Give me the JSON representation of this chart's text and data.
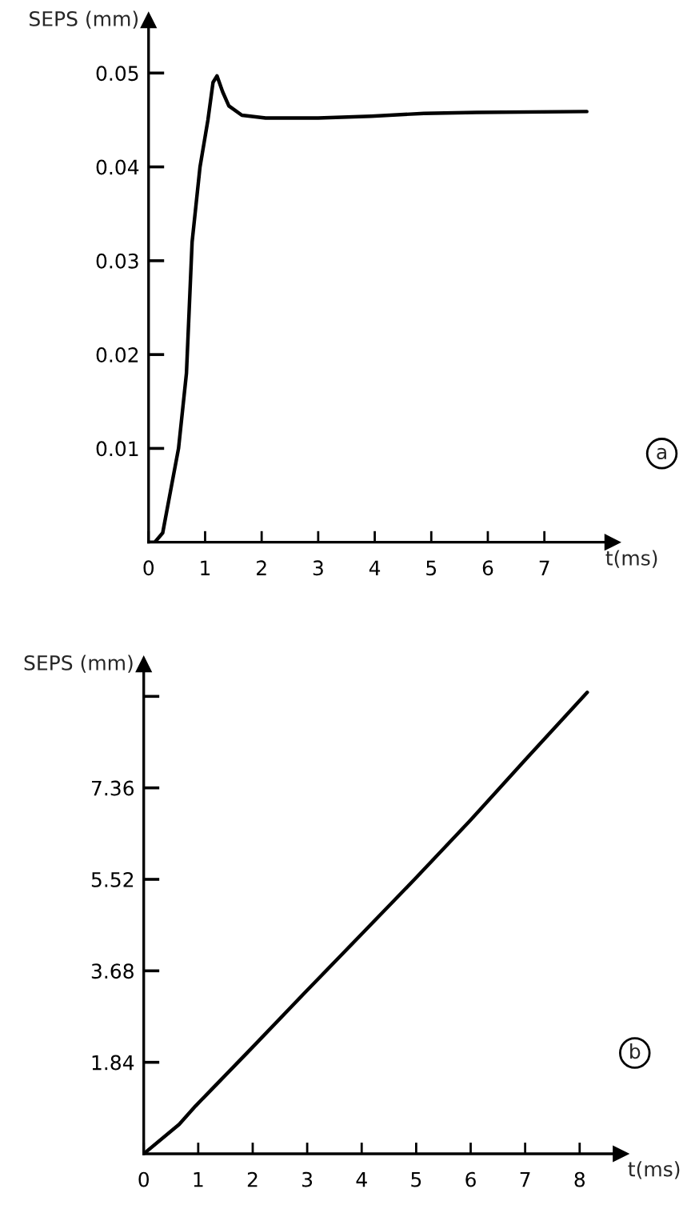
{
  "chart_data": [
    {
      "type": "line",
      "ylabel": "SEPS (mm)",
      "xlabel": "t(ms)",
      "annotations": [
        "a"
      ],
      "x": [
        0,
        0.11,
        0.25,
        0.39,
        0.53,
        0.67,
        0.77,
        0.91,
        1.05,
        1.14,
        1.21,
        1.31,
        1.42,
        1.65,
        2.07,
        3.0,
        3.94,
        4.87,
        5.8,
        7.75
      ],
      "series": [
        {
          "color": "#000000",
          "values": [
            0,
            0,
            0.001,
            0.0055,
            0.01,
            0.018,
            0.032,
            0.04,
            0.045,
            0.049,
            0.0497,
            0.048,
            0.0465,
            0.0455,
            0.0452,
            0.0452,
            0.0454,
            0.0457,
            0.0458,
            0.0459
          ]
        }
      ],
      "xlim": [
        0,
        8.2
      ],
      "ylim": [
        0,
        0.0556
      ],
      "xticks": [
        0,
        1,
        2,
        3,
        4,
        5,
        6,
        7
      ],
      "yticks": [
        0.01,
        0.02,
        0.03,
        0.04,
        0.05
      ],
      "grid": false,
      "legend": false
    },
    {
      "type": "line",
      "ylabel": "SEPS (mm)",
      "xlabel": "t(ms)",
      "annotations": [
        "b"
      ],
      "x": [
        0,
        0.65,
        0.95,
        1.95,
        2.93,
        3.93,
        4.97,
        5.98,
        7.0,
        8.14
      ],
      "series": [
        {
          "color": "#000000",
          "values": [
            0,
            0.59,
            0.96,
            2.09,
            3.21,
            4.34,
            5.52,
            6.69,
            7.92,
            9.28
          ]
        }
      ],
      "xlim": [
        0,
        8.75
      ],
      "ylim": [
        0,
        9.84
      ],
      "xticks": [
        0,
        1,
        2,
        3,
        4,
        5,
        6,
        7,
        8
      ],
      "yticks": [
        1.84,
        3.68,
        5.52,
        7.36,
        {
          "value": 9.2,
          "label": null
        }
      ],
      "grid": false,
      "legend": false
    }
  ]
}
